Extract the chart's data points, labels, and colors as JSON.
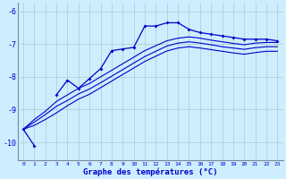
{
  "title": "Graphe des températures (°C)",
  "bg_color": "#cceeff",
  "line_color": "#0000cc",
  "grid_color": "#aacccc",
  "xlim": [
    -0.5,
    23.5
  ],
  "ylim": [
    -10.55,
    -5.75
  ],
  "xticks": [
    0,
    1,
    2,
    3,
    4,
    5,
    6,
    7,
    8,
    9,
    10,
    11,
    12,
    13,
    14,
    15,
    16,
    17,
    18,
    19,
    20,
    21,
    22,
    23
  ],
  "yticks": [
    -10,
    -9,
    -8,
    -7,
    -6
  ],
  "main_x": [
    0,
    1,
    2,
    3,
    4,
    5,
    6,
    7,
    8,
    9,
    10,
    11,
    12,
    13,
    14,
    15,
    16,
    17,
    18,
    19,
    20,
    21,
    22,
    23
  ],
  "main_y": [
    -9.6,
    -10.1,
    null,
    -8.55,
    -8.1,
    -8.35,
    -8.05,
    -7.75,
    -7.2,
    -7.15,
    -7.1,
    -6.45,
    -6.45,
    -6.35,
    -6.35,
    -6.55,
    -6.65,
    -6.7,
    -6.75,
    -6.8,
    -6.85,
    -6.85,
    -6.85,
    -6.9
  ],
  "smooth1_y": [
    -9.6,
    -9.3,
    -9.05,
    -8.75,
    -8.55,
    -8.35,
    -8.2,
    -8.0,
    -7.8,
    -7.6,
    -7.4,
    -7.2,
    -7.05,
    -6.9,
    -6.82,
    -6.78,
    -6.82,
    -6.88,
    -6.93,
    -6.98,
    -7.02,
    -6.97,
    -6.95,
    -6.95
  ],
  "smooth2_y": [
    -9.6,
    -9.38,
    -9.15,
    -8.9,
    -8.72,
    -8.52,
    -8.37,
    -8.18,
    -7.98,
    -7.78,
    -7.58,
    -7.38,
    -7.22,
    -7.06,
    -6.97,
    -6.93,
    -6.97,
    -7.02,
    -7.08,
    -7.12,
    -7.16,
    -7.11,
    -7.08,
    -7.08
  ],
  "smooth3_y": [
    -9.6,
    -9.48,
    -9.3,
    -9.1,
    -8.88,
    -8.68,
    -8.53,
    -8.33,
    -8.13,
    -7.93,
    -7.73,
    -7.53,
    -7.37,
    -7.21,
    -7.12,
    -7.08,
    -7.12,
    -7.17,
    -7.22,
    -7.27,
    -7.31,
    -7.26,
    -7.22,
    -7.22
  ]
}
